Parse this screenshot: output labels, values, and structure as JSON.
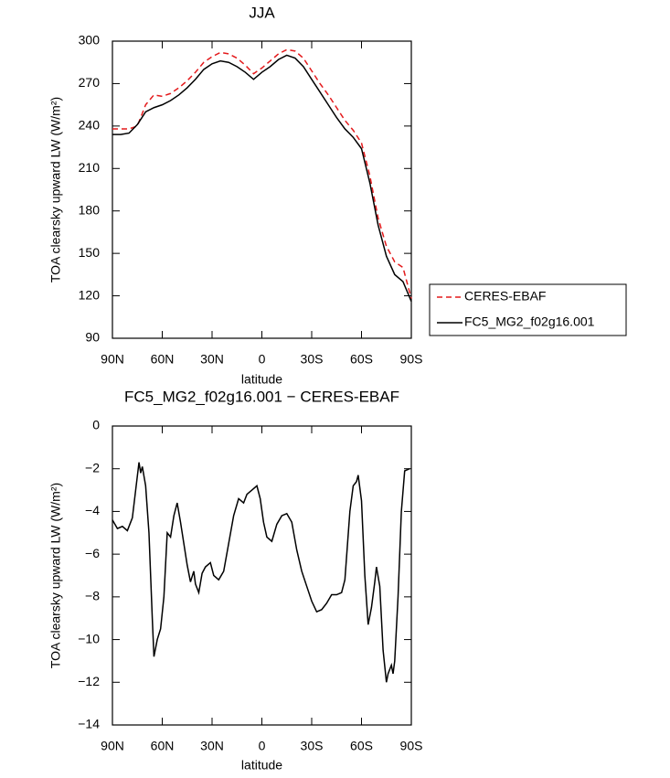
{
  "chart_data": [
    {
      "type": "line",
      "title": "JJA",
      "xlabel": "latitude",
      "ylabel": "TOA clearsky upward LW (W/m²)",
      "xlim": [
        90,
        -90
      ],
      "xticks": [
        {
          "value": 90,
          "label": "90N"
        },
        {
          "value": 60,
          "label": "60N"
        },
        {
          "value": 30,
          "label": "30N"
        },
        0,
        {
          "value": -30,
          "label": "30S"
        },
        {
          "value": -60,
          "label": "60S"
        },
        {
          "value": -90,
          "label": "90S"
        }
      ],
      "ylim": [
        90,
        300
      ],
      "yticks": [
        90,
        120,
        150,
        180,
        210,
        240,
        270,
        300
      ],
      "legend": "right",
      "x": [
        90,
        85,
        80,
        75,
        70,
        65,
        60,
        55,
        50,
        45,
        40,
        35,
        30,
        25,
        20,
        15,
        10,
        5,
        0,
        -5,
        -10,
        -15,
        -20,
        -25,
        -30,
        -35,
        -40,
        -45,
        -50,
        -55,
        -60,
        -65,
        -70,
        -75,
        -80,
        -85,
        -90
      ],
      "series": [
        {
          "name": "CERES-EBAF",
          "color": "#e41a1c",
          "dash": true,
          "values": [
            238,
            238,
            238,
            240,
            255,
            262,
            261,
            263,
            267,
            272,
            278,
            285,
            289,
            292,
            291,
            288,
            283,
            277,
            281,
            286,
            291,
            294,
            293,
            288,
            279,
            270,
            262,
            253,
            244,
            237,
            228,
            205,
            175,
            155,
            144,
            140,
            118
          ]
        },
        {
          "name": "FC5_MG2_f02g16.001",
          "color": "#000000",
          "dash": false,
          "values": [
            234,
            234,
            235,
            241,
            250,
            253,
            255,
            258,
            262,
            267,
            273,
            280,
            284,
            286,
            285,
            282,
            278,
            273,
            278,
            282,
            287,
            290,
            288,
            282,
            273,
            264,
            255,
            246,
            238,
            232,
            224,
            200,
            170,
            148,
            135,
            130,
            116
          ]
        }
      ]
    },
    {
      "type": "line",
      "title": "FC5_MG2_f02g16.001 − CERES-EBAF",
      "xlabel": "latitude",
      "ylabel": "TOA clearsky upward LW (W/m²)",
      "xlim": [
        90,
        -90
      ],
      "xticks": [
        {
          "value": 90,
          "label": "90N"
        },
        {
          "value": 60,
          "label": "60N"
        },
        {
          "value": 30,
          "label": "30N"
        },
        0,
        {
          "value": -30,
          "label": "30S"
        },
        {
          "value": -60,
          "label": "60S"
        },
        {
          "value": -90,
          "label": "90S"
        }
      ],
      "ylim": [
        -14,
        0
      ],
      "yticks": [
        {
          "value": -14,
          "label": "−14"
        },
        {
          "value": -12,
          "label": "−12"
        },
        {
          "value": -10,
          "label": "−10"
        },
        {
          "value": -8,
          "label": "−8"
        },
        {
          "value": -6,
          "label": "−6"
        },
        {
          "value": -4,
          "label": "−4"
        },
        {
          "value": -2,
          "label": "−2"
        },
        0
      ],
      "x": [
        90,
        87,
        84,
        81,
        78,
        76,
        74,
        73,
        72,
        70,
        68,
        66,
        65,
        63,
        61,
        59,
        57,
        55,
        53,
        51,
        49,
        47,
        45,
        43,
        41,
        40,
        38,
        36,
        34,
        31,
        29,
        26,
        23,
        20,
        17,
        14,
        11,
        9,
        6,
        3,
        1,
        -1,
        -3,
        -6,
        -9,
        -12,
        -15,
        -18,
        -21,
        -24,
        -27,
        -30,
        -33,
        -36,
        -39,
        -42,
        -45,
        -48,
        -50,
        -53,
        -55,
        -57,
        -58,
        -60,
        -62,
        -64,
        -66,
        -68,
        -69,
        -71,
        -73,
        -75,
        -76,
        -78,
        -79,
        -80,
        -82,
        -84,
        -86,
        -89
      ],
      "series": [
        {
          "color": "#000000",
          "dash": false,
          "values": [
            -4.4,
            -4.8,
            -4.7,
            -4.9,
            -4.3,
            -3.0,
            -1.7,
            -2.2,
            -1.9,
            -2.8,
            -5,
            -9,
            -10.8,
            -10,
            -9.5,
            -8,
            -5,
            -5.2,
            -4.2,
            -3.6,
            -4.5,
            -5.5,
            -6.5,
            -7.3,
            -6.8,
            -7.4,
            -7.8,
            -6.9,
            -6.6,
            -6.4,
            -7,
            -7.2,
            -6.8,
            -5.5,
            -4.2,
            -3.4,
            -3.6,
            -3.2,
            -3.0,
            -2.8,
            -3.4,
            -4.5,
            -5.2,
            -5.4,
            -4.6,
            -4.2,
            -4.1,
            -4.5,
            -5.8,
            -6.8,
            -7.5,
            -8.2,
            -8.7,
            -8.6,
            -8.3,
            -7.9,
            -7.9,
            -7.8,
            -7.2,
            -4,
            -2.8,
            -2.6,
            -2.3,
            -3.5,
            -7,
            -9.3,
            -8.5,
            -7.3,
            -6.6,
            -7.5,
            -10.5,
            -12,
            -11.6,
            -11.2,
            -11.6,
            -11,
            -8,
            -4,
            -2.1,
            -2.0
          ]
        }
      ]
    }
  ]
}
